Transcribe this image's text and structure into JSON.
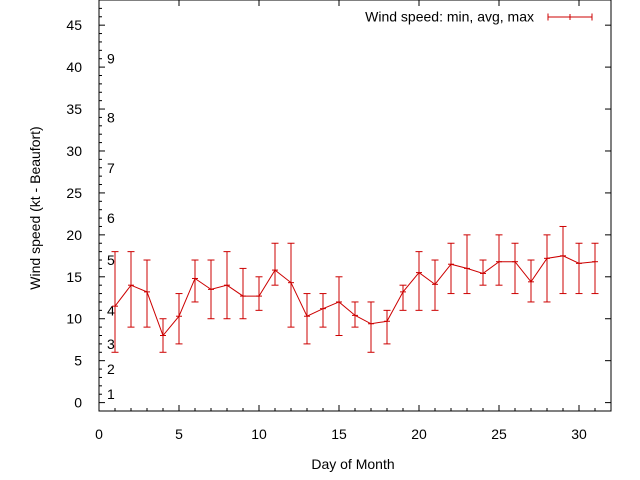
{
  "chart_data": {
    "type": "line",
    "xlabel": "Day of Month",
    "ylabel": "Wind speed (kt - Beaufort)",
    "xlim": [
      0,
      32
    ],
    "ylim": [
      -1,
      48
    ],
    "xticks": [
      0,
      5,
      10,
      15,
      20,
      25,
      30
    ],
    "yticks": [
      0,
      5,
      10,
      15,
      20,
      25,
      30,
      35,
      40,
      45
    ],
    "grid": false,
    "legend_position": "top-right",
    "beaufort_labels": [
      {
        "label": "1",
        "y": 1
      },
      {
        "label": "2",
        "y": 4
      },
      {
        "label": "3",
        "y": 7
      },
      {
        "label": "4",
        "y": 11
      },
      {
        "label": "5",
        "y": 17
      },
      {
        "label": "6",
        "y": 22
      },
      {
        "label": "7",
        "y": 28
      },
      {
        "label": "8",
        "y": 34
      },
      {
        "label": "9",
        "y": 41
      }
    ],
    "series": [
      {
        "name": "Wind speed: min, avg, max",
        "color": "#cc0000",
        "x": [
          1,
          2,
          3,
          4,
          5,
          6,
          7,
          8,
          9,
          10,
          11,
          12,
          13,
          14,
          15,
          16,
          17,
          18,
          19,
          20,
          21,
          22,
          23,
          24,
          25,
          26,
          27,
          28,
          29,
          30,
          31
        ],
        "avg": [
          11.5,
          14,
          13.2,
          8,
          10.3,
          14.8,
          13.5,
          14,
          12.7,
          12.7,
          15.8,
          14.3,
          10.3,
          11.2,
          12,
          10.4,
          9.4,
          9.7,
          13.2,
          15.5,
          14.1,
          16.5,
          16,
          15.4,
          16.8,
          16.8,
          14.4,
          17.2,
          17.5,
          16.6,
          16.8
        ],
        "min": [
          6,
          9,
          9,
          6,
          7,
          12,
          10,
          10,
          10,
          11,
          14,
          9,
          7,
          9,
          8,
          9,
          6,
          7,
          11,
          11,
          11,
          13,
          13,
          14,
          14,
          13,
          12,
          12,
          13,
          13,
          13
        ],
        "max": [
          18,
          18,
          17,
          10,
          13,
          17,
          17,
          18,
          16,
          15,
          19,
          19,
          13,
          13,
          15,
          12,
          12,
          11,
          14,
          18,
          17,
          19,
          20,
          17,
          20,
          19,
          17,
          20,
          21,
          19,
          19
        ]
      }
    ]
  }
}
